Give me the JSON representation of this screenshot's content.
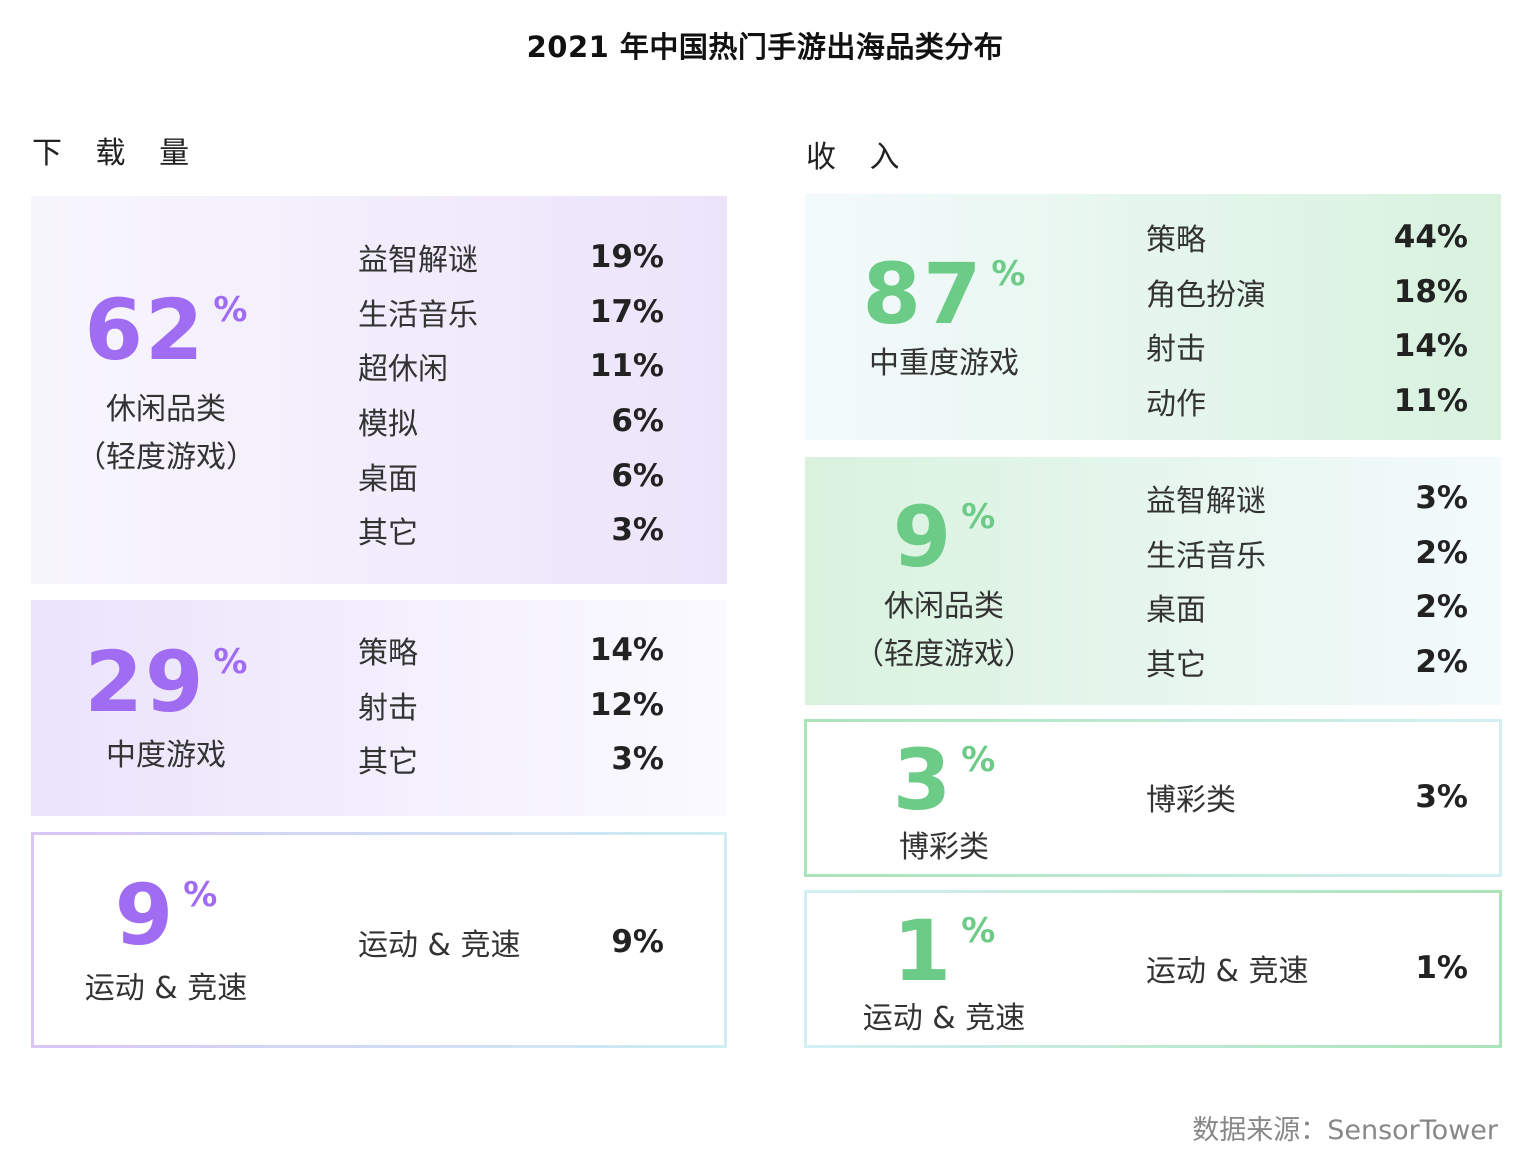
{
  "title": "2021 年中国热门手游出海品类分布",
  "source": "数据来源：SensorTower",
  "colors": {
    "download_accent": "#a06cf2",
    "revenue_accent": "#6ccb86"
  },
  "chart_data": {
    "type": "table",
    "title": "2021 年中国热门手游出海品类分布",
    "panels": [
      {
        "name": "下 载 量",
        "groups": [
          {
            "big": "62",
            "pct": "%",
            "label1": "休闲品类",
            "label2": "（轻度游戏）",
            "items": [
              {
                "name": "益智解谜",
                "value": "19%"
              },
              {
                "name": "生活音乐",
                "value": "17%"
              },
              {
                "name": "超休闲",
                "value": "11%"
              },
              {
                "name": "模拟",
                "value": "6%"
              },
              {
                "name": "桌面",
                "value": "6%"
              },
              {
                "name": "其它",
                "value": "3%"
              }
            ]
          },
          {
            "big": "29",
            "pct": "%",
            "label1": "中度游戏",
            "label2": "",
            "items": [
              {
                "name": "策略",
                "value": "14%"
              },
              {
                "name": "射击",
                "value": "12%"
              },
              {
                "name": "其它",
                "value": "3%"
              }
            ]
          },
          {
            "big": "9",
            "pct": "%",
            "label1": "运动 & 竞速",
            "label2": "",
            "items": [
              {
                "name": "运动 & 竞速",
                "value": "9%"
              }
            ]
          }
        ]
      },
      {
        "name": "收 入",
        "groups": [
          {
            "big": "87",
            "pct": "%",
            "label1": "中重度游戏",
            "label2": "",
            "items": [
              {
                "name": "策略",
                "value": "44%"
              },
              {
                "name": "角色扮演",
                "value": "18%"
              },
              {
                "name": "射击",
                "value": "14%"
              },
              {
                "name": "动作",
                "value": "11%"
              }
            ]
          },
          {
            "big": "9",
            "pct": "%",
            "label1": "休闲品类",
            "label2": "（轻度游戏）",
            "items": [
              {
                "name": "益智解谜",
                "value": "3%"
              },
              {
                "name": "生活音乐",
                "value": "2%"
              },
              {
                "name": "桌面",
                "value": "2%"
              },
              {
                "name": "其它",
                "value": "2%"
              }
            ]
          },
          {
            "big": "3",
            "pct": "%",
            "label1": "博彩类",
            "label2": "",
            "items": [
              {
                "name": "博彩类",
                "value": "3%"
              }
            ]
          },
          {
            "big": "1",
            "pct": "%",
            "label1": "运动 & 竞速",
            "label2": "",
            "items": [
              {
                "name": "运动 & 竞速",
                "value": "1%"
              }
            ]
          }
        ]
      }
    ]
  }
}
